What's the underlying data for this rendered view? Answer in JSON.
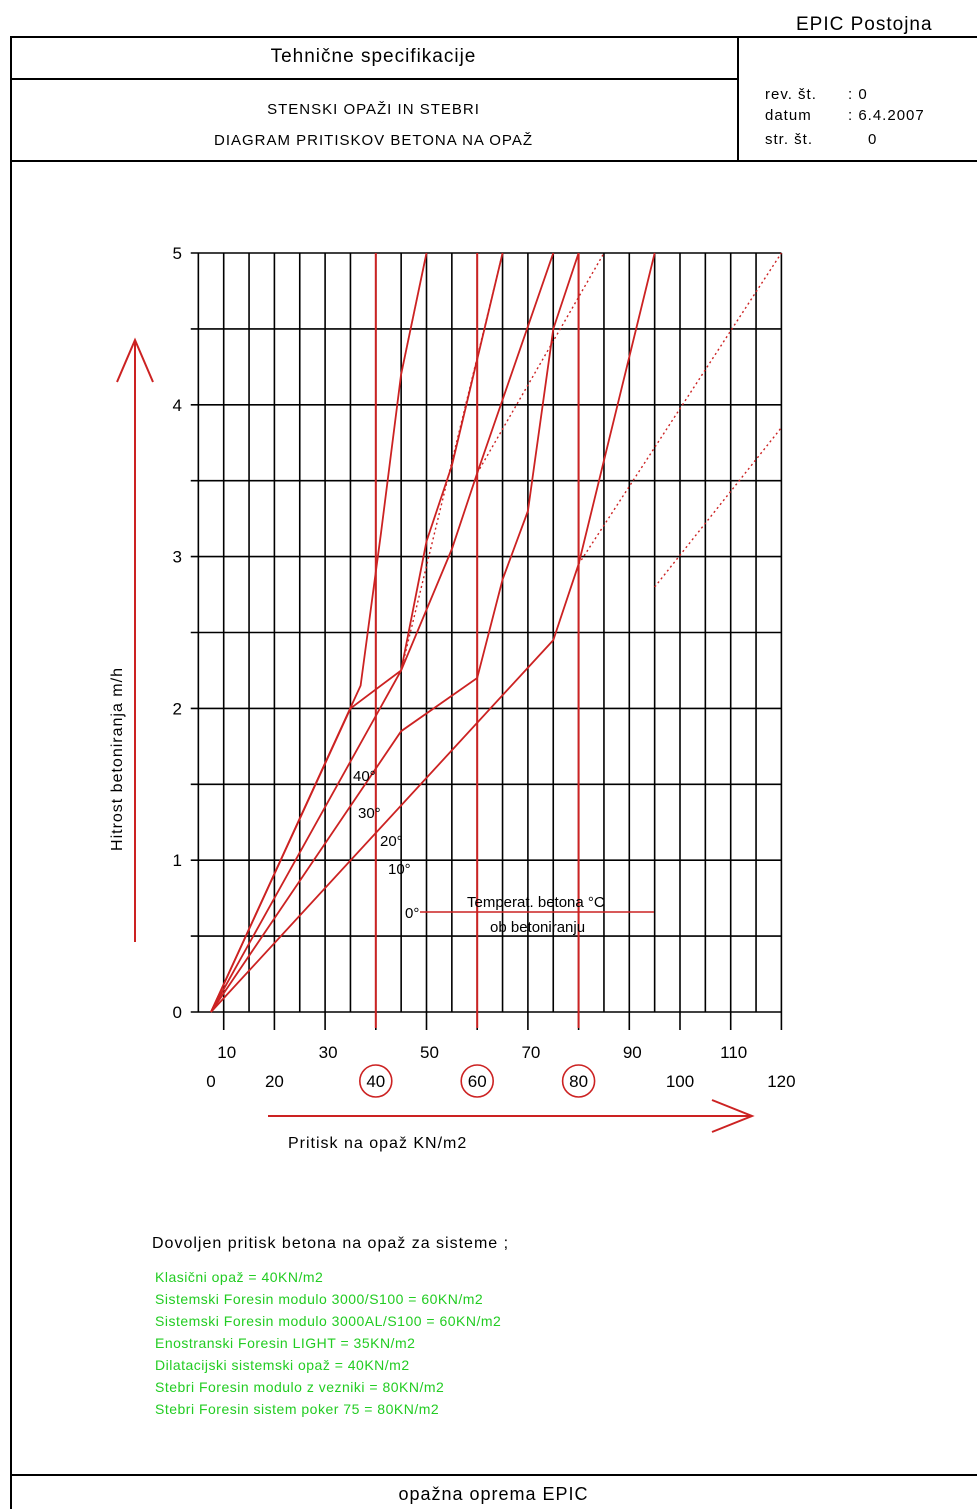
{
  "header": {
    "company": "EPIC Postojna",
    "title": "Tehnične specifikacije",
    "subtitle_line1": "STENSKI OPAŽI IN STEBRI",
    "subtitle_line2": "DIAGRAM PRITISKOV BETONA NA OPAŽ",
    "rev_label": "rev. št.",
    "rev_value": ": 0",
    "date_label": "datum",
    "date_value": ": 6.4.2007",
    "page_label": "str. št.",
    "page_value": "0"
  },
  "footer": {
    "text": "opažna oprema EPIC"
  },
  "notes": {
    "heading": "Dovoljen pritisk betona na opaž za sisteme   ;",
    "items": [
      "Klasični opaž  =  40KN/m2",
      "Sistemski Foresin modulo 3000/S100  =  60KN/m2",
      "Sistemski Foresin modulo 3000AL/S100  =  60KN/m2",
      "Enostranski Foresin LIGHT  =  35KN/m2",
      "Dilatacijski sistemski opaž  =  40KN/m2",
      "Stebri Foresin modulo z vezniki  =  80KN/m2",
      "Stebri Foresin sistem poker 75  =  80KN/m2"
    ]
  },
  "chart_data": {
    "type": "line",
    "xlabel": "Pritisk na opaž KN/m2",
    "ylabel": "Hitrost betoniranja m/h",
    "xlim": [
      5,
      120
    ],
    "ylim": [
      0,
      5
    ],
    "x_ticks_upper": [
      "10",
      "30",
      "50",
      "70",
      "90",
      "110"
    ],
    "x_ticks_lower": [
      "0",
      "20",
      "40",
      "60",
      "80",
      "100",
      "120"
    ],
    "highlighted_ticks": [
      "40",
      "60",
      "80"
    ],
    "y_ticks": [
      "0",
      "1",
      "2",
      "3",
      "4",
      "5"
    ],
    "legend_title_line1": "Temperat. betona °C",
    "legend_title_line2": "ob betoniranju",
    "reference_lines_x": [
      40,
      60,
      80
    ],
    "colors": {
      "curves": "#cc2222",
      "grid": "#000000",
      "green_text": "#22cc22"
    },
    "grid": true,
    "series": [
      {
        "name": "40°",
        "points": [
          [
            7.5,
            0
          ],
          [
            37,
            2.15
          ],
          [
            41,
            3.15
          ],
          [
            45,
            4.2
          ],
          [
            50,
            5
          ]
        ]
      },
      {
        "name": "30°",
        "points": [
          [
            7.5,
            0
          ],
          [
            35,
            2
          ],
          [
            45,
            2.25
          ],
          [
            50,
            3.1
          ],
          [
            55,
            3.6
          ],
          [
            60,
            4.3
          ],
          [
            65,
            5
          ]
        ]
      },
      {
        "name": "20°",
        "points": [
          [
            7.5,
            0
          ],
          [
            45,
            2.25
          ],
          [
            55,
            3.05
          ],
          [
            60,
            3.55
          ],
          [
            75,
            5
          ]
        ]
      },
      {
        "name": "10°",
        "points": [
          [
            7.5,
            0
          ],
          [
            45,
            1.85
          ],
          [
            60,
            2.2
          ],
          [
            65,
            2.85
          ],
          [
            70,
            3.3
          ],
          [
            75,
            4.5
          ],
          [
            80,
            5
          ]
        ]
      },
      {
        "name": "0°",
        "points": [
          [
            7.5,
            0
          ],
          [
            75,
            2.45
          ],
          [
            80,
            2.95
          ],
          [
            95,
            5
          ]
        ]
      }
    ],
    "extensions": [
      {
        "name": "40°",
        "points": [
          [
            45,
            4.2
          ],
          [
            50,
            5
          ]
        ]
      },
      {
        "name": "30°",
        "points": [
          [
            45,
            2.25
          ],
          [
            65,
            5
          ]
        ]
      },
      {
        "name": "20°",
        "points": [
          [
            60,
            3.55
          ],
          [
            85,
            5
          ]
        ]
      },
      {
        "name": "10°",
        "points": [
          [
            80,
            2.95
          ],
          [
            120,
            5
          ]
        ]
      },
      {
        "name": "0°",
        "points": [
          [
            95,
            2.8
          ],
          [
            120,
            3.85
          ]
        ]
      }
    ]
  }
}
